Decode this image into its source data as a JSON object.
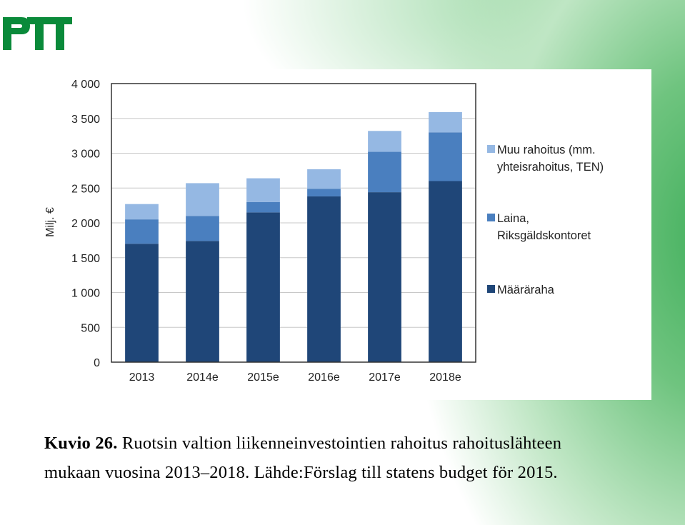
{
  "logo": {
    "text": "PTT",
    "color": "#0a8a3a"
  },
  "chart_data": {
    "type": "bar",
    "stacked": true,
    "categories": [
      "2013",
      "2014e",
      "2015e",
      "2016e",
      "2017e",
      "2018e"
    ],
    "series": [
      {
        "name": "Määräraha",
        "color": "#1f4678",
        "values": [
          1700,
          1740,
          2150,
          2380,
          2440,
          2600
        ]
      },
      {
        "name": "Laina, Riksgäldskontoret",
        "name_lines": [
          "Laina,",
          "Riksgäldskontoret"
        ],
        "color": "#4a7fbf",
        "values": [
          350,
          360,
          150,
          110,
          580,
          700
        ]
      },
      {
        "name": "Muu rahoitus (mm. yhteisrahoitus, TEN)",
        "name_lines": [
          "Muu rahoitus (mm.",
          "yhteisrahoitus, TEN)"
        ],
        "color": "#95b8e3",
        "values": [
          220,
          470,
          340,
          280,
          300,
          290
        ]
      }
    ],
    "ylabel": "Milj. €",
    "ylim": [
      0,
      4000
    ],
    "yticks": [
      0,
      500,
      1000,
      1500,
      2000,
      2500,
      3000,
      3500,
      4000
    ],
    "ytick_labels": [
      "0",
      "500",
      "1 000",
      "1 500",
      "2 000",
      "2 500",
      "3 000",
      "3 500",
      "4 000"
    ],
    "grid": true,
    "legend": "right"
  },
  "caption": {
    "label": "Kuvio 26.",
    "text_line1": " Ruotsin valtion liikenneinvestointien rahoitus rahoituslähteen",
    "text_line2": "mukaan vuosina 2013–2018. Lähde:Förslag till statens budget för 2015."
  }
}
